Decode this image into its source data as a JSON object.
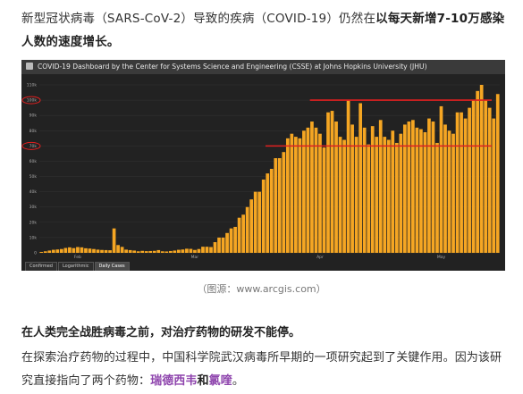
{
  "intro": {
    "text_plain": "新型冠状病毒（SARS-CoV-2）导致的疾病（COVID-19）仍然在",
    "text_bold": "以每天新增7-10万感染人数的速度增长。"
  },
  "figure": {
    "title": "COVID-19 Dashboard by the Center for Systems Science and Engineering (CSSE) at Johns Hopkins University (JHU)",
    "tabs": [
      "Confirmed",
      "Logarithmic",
      "Daily Cases"
    ],
    "active_tab": "Daily Cases",
    "caption": "（图源：www.arcgis.com）"
  },
  "chart_data": {
    "type": "bar",
    "title": "",
    "xlabel": "",
    "ylabel": "",
    "ylim": [
      0,
      110000
    ],
    "y_ticks": [
      0,
      10000,
      20000,
      30000,
      40000,
      50000,
      60000,
      70000,
      80000,
      90000,
      100000,
      110000
    ],
    "y_tick_labels": [
      "0",
      "10k",
      "20k",
      "30k",
      "40k",
      "50k",
      "60k",
      "70k",
      "80k",
      "90k",
      "100k",
      "110k"
    ],
    "x_tick_labels": [
      {
        "label": "Feb",
        "index": 9
      },
      {
        "label": "Mar",
        "index": 38
      },
      {
        "label": "Apr",
        "index": 69
      },
      {
        "label": "May",
        "index": 99
      }
    ],
    "bar_color": "#f5a623",
    "reference_lines": [
      {
        "y": 100000,
        "from_index": 67,
        "to_index": 112,
        "color": "#e02020"
      },
      {
        "y": 70000,
        "from_index": 56,
        "to_index": 112,
        "color": "#e02020"
      }
    ],
    "highlighted_ticks": [
      100000,
      70000
    ],
    "values": [
      600,
      1000,
      1500,
      2000,
      2200,
      2500,
      3200,
      3600,
      3100,
      3800,
      3600,
      3000,
      2800,
      2500,
      2100,
      1900,
      1800,
      1700,
      16000,
      5100,
      3900,
      2100,
      1800,
      1500,
      1000,
      1300,
      1100,
      1200,
      1300,
      1800,
      1000,
      900,
      1200,
      1500,
      2000,
      2200,
      2700,
      2600,
      1900,
      2500,
      4000,
      4000,
      3800,
      7000,
      10000,
      10000,
      13000,
      16000,
      17000,
      23000,
      25000,
      30000,
      35000,
      40000,
      40000,
      48000,
      52000,
      55000,
      62000,
      62000,
      66000,
      75000,
      78000,
      76000,
      75000,
      80000,
      82000,
      86000,
      82000,
      78000,
      69000,
      92000,
      93000,
      86000,
      76000,
      74000,
      100000,
      84000,
      76000,
      98000,
      82000,
      71000,
      83000,
      76000,
      87000,
      76000,
      74000,
      80000,
      72000,
      78000,
      84000,
      86000,
      87000,
      82000,
      81000,
      79000,
      88000,
      86000,
      72000,
      96000,
      84000,
      80000,
      78000,
      92000,
      92000,
      88000,
      95000,
      100000,
      106000,
      110000,
      100000,
      95000,
      88000,
      104000
    ]
  },
  "section": {
    "heading": "在人类完全战胜病毒之前，对治疗药物的研发不能停。",
    "body_plain": "在探索治疗药物的过程中，中国科学院武汉病毒所早期的一项研究起到了关键作用。因为该研究直接指向了两个药物：",
    "drug1": "瑞德西韦",
    "conj": "和",
    "drug2": "氯喹",
    "end": "。"
  }
}
